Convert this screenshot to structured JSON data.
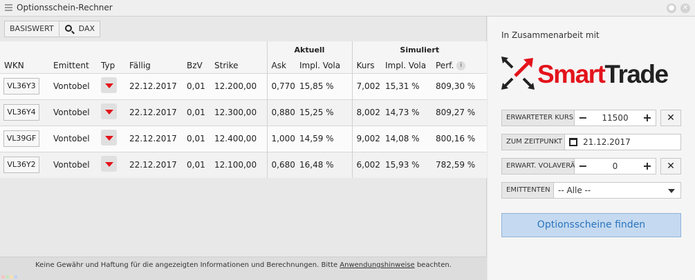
{
  "window": {
    "title": "Optionsschein-Rechner"
  },
  "toolbar": {
    "basiswert_label": "BASISWERT",
    "underlying": "DAX"
  },
  "table": {
    "group_aktuell": "Aktuell",
    "group_simuliert": "Simuliert",
    "columns": [
      "WKN",
      "Emittent",
      "Typ",
      "Fällig",
      "BzV",
      "Strike",
      "Ask",
      "Impl. Vola",
      "Kurs",
      "Impl. Vola",
      "Perf."
    ],
    "info_icon": "i",
    "rows": [
      {
        "wkn": "VL36Y3",
        "emittent": "Vontobel",
        "faellig": "22.12.2017",
        "bzv": "0,01",
        "strike": "12.200,00",
        "ask": "0,770",
        "impl_vola": "15,85 %",
        "kurs": "7,002",
        "sim_vola": "15,31 %",
        "perf": "809,30 %"
      },
      {
        "wkn": "VL36Y4",
        "emittent": "Vontobel",
        "faellig": "22.12.2017",
        "bzv": "0,01",
        "strike": "12.300,00",
        "ask": "0,880",
        "impl_vola": "15,25 %",
        "kurs": "8,002",
        "sim_vola": "14,73 %",
        "perf": "809,27 %"
      },
      {
        "wkn": "VL39GF",
        "emittent": "Vontobel",
        "faellig": "22.12.2017",
        "bzv": "0,01",
        "strike": "12.400,00",
        "ask": "1,000",
        "impl_vola": "14,59 %",
        "kurs": "9,002",
        "sim_vola": "14,08 %",
        "perf": "800,16 %"
      },
      {
        "wkn": "VL36Y2",
        "emittent": "Vontobel",
        "faellig": "22.12.2017",
        "bzv": "0,01",
        "strike": "12.100,00",
        "ask": "0,680",
        "impl_vola": "16,48 %",
        "kurs": "6,002",
        "sim_vola": "15,93 %",
        "perf": "782,59 %"
      }
    ]
  },
  "footer": {
    "text_before": "Keine Gewähr und Haftung für die angezeigten Informationen und Berechnungen. Bitte ",
    "link": "Anwendungshinweise",
    "text_after": " beachten."
  },
  "sidebar": {
    "partner_text": "In Zusammenarbeit mit",
    "logo_text": "SmartTrade",
    "kurs": {
      "label": "ERWARTETER KURS",
      "value": "11500",
      "minus": "−",
      "plus": "+"
    },
    "zeitpunkt": {
      "label": "ZUM ZEITPUNKT",
      "value": "21.12.2017"
    },
    "vola": {
      "label": "ERWART. VOLAVERÄND. %",
      "value": "0",
      "minus": "−",
      "plus": "+"
    },
    "emittenten": {
      "label": "EMITTENTEN",
      "value": "-- Alle --"
    },
    "clear": "✕",
    "find_button": "Optionsscheine finden"
  },
  "colors": {
    "accent": "#2a73bd",
    "logo_red": "#e3131b",
    "logo_dark": "#222222"
  }
}
